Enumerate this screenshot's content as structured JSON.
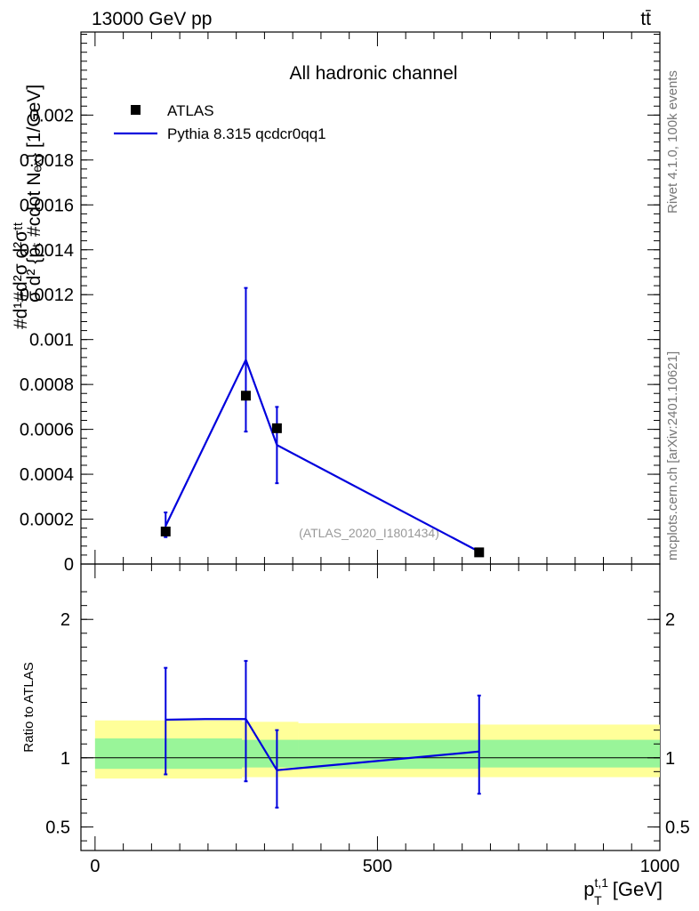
{
  "header": {
    "left": "13000 GeV pp",
    "right": "tt̄"
  },
  "side_labels": {
    "rivet": "Rivet 4.1.0,  100k events",
    "mcplots": "mcplots.cern.ch [arXiv:2401.10621]"
  },
  "chart_data": [
    {
      "type": "scatter",
      "panel": "main",
      "title": "All hadronic channel",
      "watermark": "(ATLAS_2020_I1801434)",
      "ylabel": "#d^{2}σ^{tt̄}/... — d²σ / (dp_T^{t,1} ...) [1/GeV]",
      "ylabel_lines": [
        "#d¹#d²σ d²σᵗᵗ",
        "σ  d² {pₜ  #cdot Nₑₓ} [1/GeV]"
      ],
      "ylim": [
        0,
        0.00237
      ],
      "yticks": [
        0,
        0.0002,
        0.0004,
        0.0006,
        0.0008,
        0.001,
        0.0012,
        0.0014,
        0.0016,
        0.0018,
        0.002
      ],
      "ytick_labels": [
        "0",
        "0.0002",
        "0.0004",
        "0.0006",
        "0.0008",
        "0.001",
        "0.0012",
        "0.0014",
        "0.0016",
        "0.0018",
        "0.002"
      ],
      "legend": {
        "position": "top-left",
        "entries": [
          "ATLAS",
          "Pythia 8.315 qcdcr0qq1"
        ]
      },
      "series": [
        {
          "name": "ATLAS",
          "style": "marker",
          "color": "#000000",
          "x": [
            125,
            267,
            322,
            680
          ],
          "y": [
            0.000145,
            0.00075,
            0.000605,
            5.2e-05
          ],
          "yerr_low": [
            2e-05,
            0.00016,
            1e-05,
            5e-06
          ],
          "yerr_high": [
            2e-05,
            0.00016,
            1e-05,
            5e-06
          ]
        },
        {
          "name": "Pythia 8.315 qcdcr0qq1",
          "style": "line",
          "color": "#0000dd",
          "x_edges": [
            125,
            267,
            322,
            680
          ],
          "y": [
            0.00017,
            0.00091,
            0.00053,
            5.5e-05
          ],
          "yerr_low": [
            5e-05,
            0.00032,
            0.00017,
            8e-06
          ],
          "yerr_high": [
            6e-05,
            0.00032,
            0.00017,
            8e-06
          ]
        }
      ]
    },
    {
      "type": "line",
      "panel": "ratio",
      "ylabel": "Ratio to ATLAS",
      "xlabel": "p_T^{t,1} [GeV]",
      "xlabel_main": "p",
      "xlabel_sub": "T",
      "xlabel_sup": "t,1",
      "xlabel_unit": " [GeV]",
      "xlim": [
        -25,
        1000
      ],
      "xticks": [
        0,
        500,
        1000
      ],
      "xtick_labels": [
        "0",
        "500",
        "1000"
      ],
      "ylim": [
        0.33,
        2.4
      ],
      "yticks": [
        0.5,
        1,
        2
      ],
      "ytick_labels": [
        "0.5",
        "1",
        "2"
      ],
      "bands": {
        "bins": [
          0,
          260,
          360,
          680,
          1000
        ],
        "yellow_low": [
          0.85,
          0.86,
          0.86,
          0.86
        ],
        "yellow_high": [
          1.27,
          1.26,
          1.25,
          1.24
        ],
        "green_low": [
          0.92,
          0.93,
          0.92,
          0.93
        ],
        "green_high": [
          1.14,
          1.13,
          1.13,
          1.13
        ]
      },
      "series": [
        {
          "name": "Pythia 8.315 qcdcr0qq1",
          "color": "#0000dd",
          "x": [
            125,
            195,
            267,
            322,
            680
          ],
          "y": [
            1.275,
            1.28,
            1.28,
            0.91,
            1.045
          ],
          "err_x": [
            125,
            267,
            322,
            680
          ],
          "err_y": [
            1.275,
            1.28,
            0.91,
            1.045
          ],
          "err_low": [
            0.88,
            0.83,
            0.64,
            0.74
          ],
          "err_high": [
            1.65,
            1.7,
            1.2,
            1.45
          ]
        }
      ]
    }
  ]
}
